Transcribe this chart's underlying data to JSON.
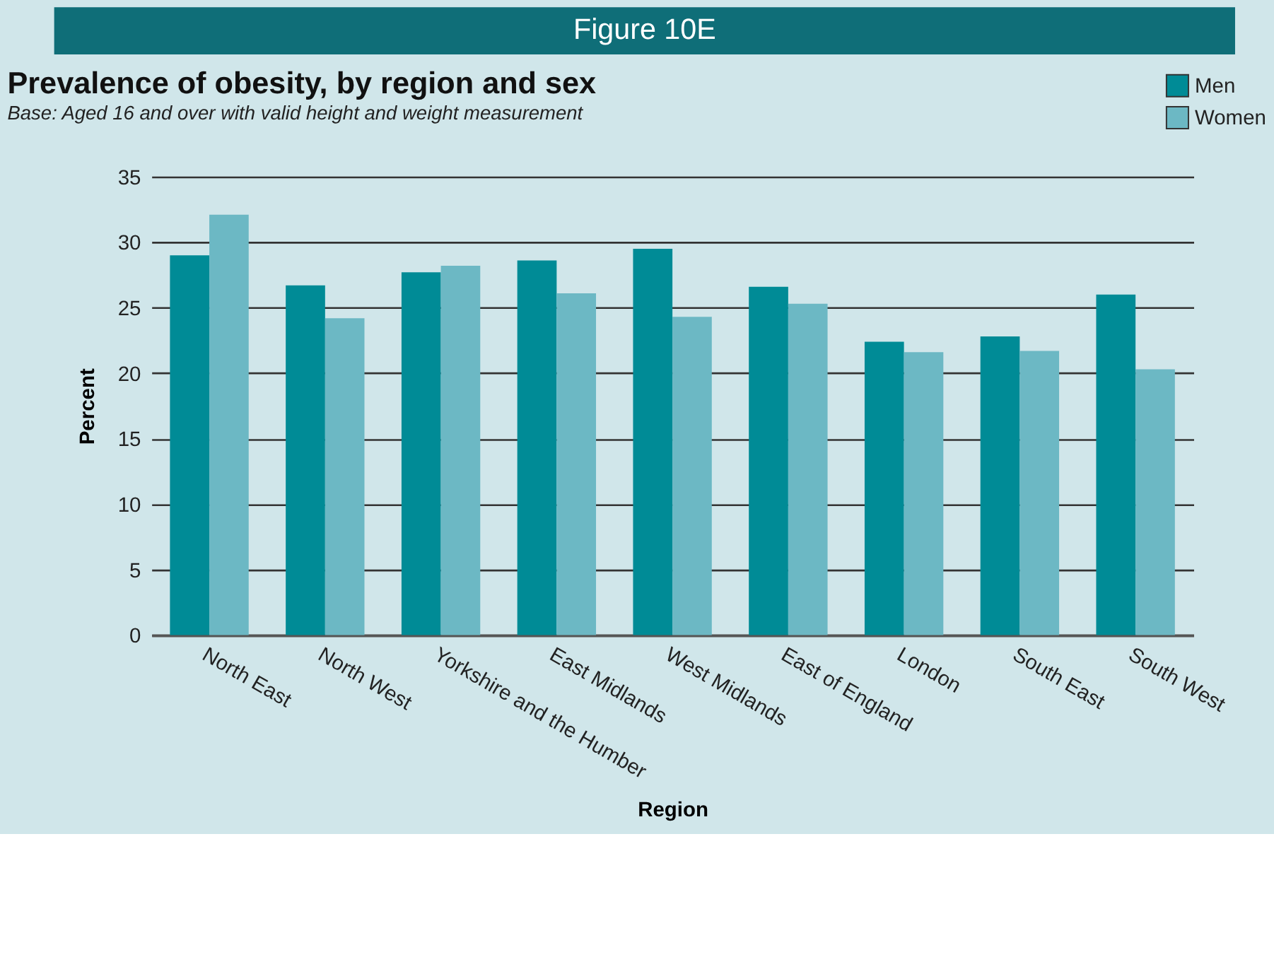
{
  "chart_data": {
    "type": "bar",
    "title": "Prevalence of obesity, by region and sex",
    "subtitle": "Base: Aged 16 and over with valid height and weight measurement",
    "xlabel": "Region",
    "ylabel": "Percent",
    "annotations": [
      "Figure 10E"
    ],
    "categories": [
      "North East",
      "North West",
      "Yorkshire and the Humber",
      "East Midlands",
      "West Midlands",
      "East of England",
      "London",
      "South East",
      "South West"
    ],
    "series": [
      {
        "name": "Men",
        "color": "#008b96",
        "values": [
          29.0,
          26.7,
          27.7,
          28.6,
          29.5,
          26.6,
          22.4,
          22.8,
          26.0
        ]
      },
      {
        "name": "Women",
        "color": "#6cb8c4",
        "values": [
          32.1,
          24.2,
          28.2,
          26.1,
          24.3,
          25.3,
          21.6,
          21.7,
          20.3
        ]
      }
    ],
    "ylim": [
      0,
      35
    ],
    "yticks": [
      0,
      5,
      10,
      15,
      20,
      25,
      30,
      35
    ],
    "grid": "y",
    "legend": "top right"
  }
}
